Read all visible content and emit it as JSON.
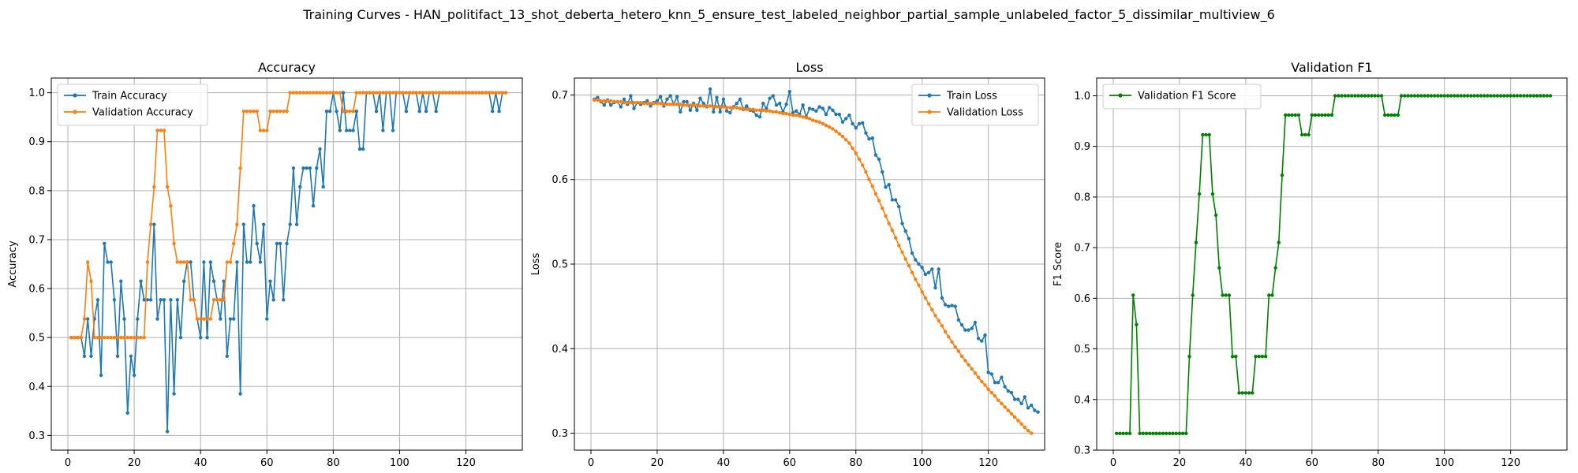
{
  "suptitle": "Training Curves - HAN_politifact_13_shot_deberta_hetero_knn_5_ensure_test_labeled_neighbor_partial_sample_unlabeled_factor_5_dissimilar_multiview_6",
  "colors": {
    "blue": "#1f77b4",
    "orange": "#ff7f0e",
    "green": "#008000",
    "grid": "#b0b0b0"
  },
  "chart_data": [
    {
      "type": "line",
      "title": "Accuracy",
      "xlabel": "Epoch",
      "ylabel": "Accuracy",
      "xlim": [
        -5,
        137
      ],
      "ylim": [
        0.27,
        1.03
      ],
      "xticks": [
        0,
        20,
        40,
        60,
        80,
        100,
        120
      ],
      "yticks": [
        0.3,
        0.4,
        0.5,
        0.6,
        0.7,
        0.8,
        0.9,
        1.0
      ],
      "grid": true,
      "legend": "top-left",
      "series": [
        {
          "name": "Train Accuracy",
          "color": "#1f77b4",
          "x_start": 1,
          "values": [
            0.5,
            0.5,
            0.5,
            0.5,
            0.462,
            0.538,
            0.462,
            0.538,
            0.577,
            0.423,
            0.692,
            0.654,
            0.654,
            0.577,
            0.462,
            0.615,
            0.538,
            0.346,
            0.462,
            0.423,
            0.538,
            0.615,
            0.577,
            0.577,
            0.577,
            0.731,
            0.538,
            0.577,
            0.577,
            0.308,
            0.577,
            0.385,
            0.577,
            0.5,
            0.615,
            0.654,
            0.654,
            0.577,
            0.538,
            0.5,
            0.654,
            0.5,
            0.654,
            0.615,
            0.577,
            0.538,
            0.615,
            0.462,
            0.538,
            0.538,
            0.654,
            0.385,
            0.731,
            0.654,
            0.654,
            0.769,
            0.692,
            0.654,
            0.731,
            0.538,
            0.615,
            0.577,
            0.692,
            0.692,
            0.577,
            0.692,
            0.731,
            0.846,
            0.731,
            0.808,
            0.846,
            0.846,
            0.846,
            0.769,
            0.846,
            0.885,
            0.808,
            0.962,
            0.962,
            1.0,
            0.962,
            0.923,
            1.0,
            0.923,
            0.923,
            0.923,
            0.962,
            0.885,
            0.885,
            1.0,
            1.0,
            1.0,
            0.962,
            1.0,
            0.923,
            1.0,
            1.0,
            0.923,
            1.0,
            1.0,
            1.0,
            0.962,
            1.0,
            1.0,
            1.0,
            0.962,
            1.0,
            0.962,
            1.0,
            1.0,
            0.962,
            1.0,
            1.0,
            1.0,
            1.0,
            1.0,
            1.0,
            1.0,
            1.0,
            1.0,
            1.0,
            1.0,
            1.0,
            1.0,
            1.0,
            1.0,
            1.0,
            0.962,
            1.0,
            0.962,
            1.0,
            1.0
          ]
        },
        {
          "name": "Validation Accuracy",
          "color": "#ff7f0e",
          "x_start": 1,
          "values": [
            0.5,
            0.5,
            0.5,
            0.5,
            0.538,
            0.654,
            0.615,
            0.5,
            0.5,
            0.5,
            0.5,
            0.5,
            0.5,
            0.5,
            0.5,
            0.5,
            0.5,
            0.5,
            0.5,
            0.5,
            0.5,
            0.5,
            0.5,
            0.654,
            0.731,
            0.808,
            0.923,
            0.923,
            0.923,
            0.808,
            0.769,
            0.692,
            0.654,
            0.654,
            0.654,
            0.654,
            0.577,
            0.577,
            0.538,
            0.538,
            0.538,
            0.538,
            0.538,
            0.577,
            0.577,
            0.577,
            0.577,
            0.654,
            0.654,
            0.692,
            0.731,
            0.846,
            0.962,
            0.962,
            0.962,
            0.962,
            0.962,
            0.923,
            0.923,
            0.923,
            0.962,
            0.962,
            0.962,
            0.962,
            0.962,
            0.962,
            1.0,
            1.0,
            1.0,
            1.0,
            1.0,
            1.0,
            1.0,
            1.0,
            1.0,
            1.0,
            1.0,
            1.0,
            1.0,
            1.0,
            1.0,
            1.0,
            0.962,
            0.962,
            0.962,
            0.962,
            1.0,
            1.0,
            1.0,
            1.0,
            1.0,
            1.0,
            1.0,
            1.0,
            1.0,
            1.0,
            1.0,
            1.0,
            1.0,
            1.0,
            1.0,
            1.0,
            1.0,
            1.0,
            1.0,
            1.0,
            1.0,
            1.0,
            1.0,
            1.0,
            1.0,
            1.0,
            1.0,
            1.0,
            1.0,
            1.0,
            1.0,
            1.0,
            1.0,
            1.0,
            1.0,
            1.0,
            1.0,
            1.0,
            1.0,
            1.0,
            1.0,
            1.0,
            1.0,
            1.0,
            1.0,
            1.0
          ]
        }
      ]
    },
    {
      "type": "line",
      "title": "Loss",
      "xlabel": "Epoch",
      "ylabel": "Loss",
      "xlim": [
        -5,
        137
      ],
      "ylim": [
        0.28,
        0.72
      ],
      "xticks": [
        0,
        20,
        40,
        60,
        80,
        100,
        120
      ],
      "yticks": [
        0.3,
        0.4,
        0.5,
        0.6,
        0.7
      ],
      "grid": true,
      "legend": "top-right",
      "series": [
        {
          "name": "Train Loss",
          "color": "#1f77b4",
          "x_start": 1,
          "values": [
            0.695,
            0.697,
            0.692,
            0.688,
            0.694,
            0.688,
            0.691,
            0.692,
            0.686,
            0.695,
            0.689,
            0.699,
            0.684,
            0.691,
            0.689,
            0.691,
            0.693,
            0.687,
            0.691,
            0.693,
            0.698,
            0.687,
            0.695,
            0.699,
            0.689,
            0.698,
            0.68,
            0.692,
            0.692,
            0.682,
            0.69,
            0.682,
            0.696,
            0.69,
            0.686,
            0.707,
            0.68,
            0.697,
            0.68,
            0.695,
            0.681,
            0.679,
            0.686,
            0.69,
            0.695,
            0.683,
            0.687,
            0.682,
            0.681,
            0.676,
            0.674,
            0.69,
            0.684,
            0.696,
            0.699,
            0.688,
            0.69,
            0.68,
            0.689,
            0.704,
            0.679,
            0.681,
            0.677,
            0.688,
            0.674,
            0.684,
            0.683,
            0.681,
            0.686,
            0.684,
            0.677,
            0.685,
            0.682,
            0.677,
            0.677,
            0.668,
            0.672,
            0.676,
            0.666,
            0.661,
            0.666,
            0.667,
            0.655,
            0.648,
            0.649,
            0.629,
            0.624,
            0.609,
            0.591,
            0.594,
            0.576,
            0.576,
            0.568,
            0.548,
            0.539,
            0.53,
            0.513,
            0.505,
            0.5,
            0.496,
            0.488,
            0.49,
            0.494,
            0.472,
            0.494,
            0.46,
            0.452,
            0.45,
            0.451,
            0.45,
            0.434,
            0.428,
            0.422,
            0.422,
            0.424,
            0.431,
            0.412,
            0.409,
            0.416,
            0.372,
            0.37,
            0.36,
            0.36,
            0.366,
            0.355,
            0.35,
            0.348,
            0.34,
            0.34,
            0.335,
            0.343,
            0.33,
            0.333,
            0.327,
            0.325
          ]
        },
        {
          "name": "Validation Loss",
          "color": "#ff7f0e",
          "x_start": 1,
          "values": [
            0.694,
            0.694,
            0.693,
            0.693,
            0.693,
            0.693,
            0.692,
            0.692,
            0.692,
            0.691,
            0.691,
            0.691,
            0.691,
            0.691,
            0.691,
            0.69,
            0.69,
            0.69,
            0.69,
            0.69,
            0.69,
            0.689,
            0.689,
            0.689,
            0.689,
            0.689,
            0.689,
            0.688,
            0.688,
            0.688,
            0.688,
            0.688,
            0.687,
            0.687,
            0.687,
            0.687,
            0.686,
            0.686,
            0.686,
            0.686,
            0.685,
            0.685,
            0.685,
            0.685,
            0.684,
            0.684,
            0.683,
            0.683,
            0.683,
            0.682,
            0.682,
            0.682,
            0.681,
            0.681,
            0.68,
            0.68,
            0.679,
            0.678,
            0.678,
            0.677,
            0.676,
            0.676,
            0.675,
            0.674,
            0.673,
            0.672,
            0.67,
            0.669,
            0.668,
            0.666,
            0.664,
            0.662,
            0.66,
            0.657,
            0.654,
            0.651,
            0.647,
            0.643,
            0.637,
            0.631,
            0.624,
            0.617,
            0.609,
            0.6,
            0.592,
            0.583,
            0.575,
            0.566,
            0.557,
            0.548,
            0.54,
            0.531,
            0.522,
            0.514,
            0.506,
            0.498,
            0.49,
            0.482,
            0.475,
            0.467,
            0.46,
            0.453,
            0.446,
            0.439,
            0.433,
            0.427,
            0.42,
            0.414,
            0.408,
            0.402,
            0.397,
            0.391,
            0.386,
            0.381,
            0.376,
            0.371,
            0.366,
            0.361,
            0.357,
            0.352,
            0.348,
            0.344,
            0.339,
            0.335,
            0.331,
            0.327,
            0.323,
            0.319,
            0.315,
            0.311,
            0.307,
            0.303,
            0.3
          ]
        }
      ]
    },
    {
      "type": "line",
      "title": "Validation F1",
      "xlabel": "Epoch",
      "ylabel": "F1 Score",
      "xlim": [
        -5,
        137
      ],
      "ylim": [
        0.3,
        1.035
      ],
      "xticks": [
        0,
        20,
        40,
        60,
        80,
        100,
        120
      ],
      "yticks": [
        0.3,
        0.4,
        0.5,
        0.6,
        0.7,
        0.8,
        0.9,
        1.0
      ],
      "grid": true,
      "legend": "top-left",
      "series": [
        {
          "name": "Validation F1 Score",
          "color": "#008000",
          "x_start": 1,
          "values": [
            0.333,
            0.333,
            0.333,
            0.333,
            0.333,
            0.606,
            0.548,
            0.333,
            0.333,
            0.333,
            0.333,
            0.333,
            0.333,
            0.333,
            0.333,
            0.333,
            0.333,
            0.333,
            0.333,
            0.333,
            0.333,
            0.333,
            0.485,
            0.606,
            0.71,
            0.806,
            0.923,
            0.923,
            0.923,
            0.806,
            0.764,
            0.66,
            0.606,
            0.606,
            0.606,
            0.485,
            0.485,
            0.413,
            0.413,
            0.413,
            0.413,
            0.413,
            0.485,
            0.485,
            0.485,
            0.485,
            0.606,
            0.606,
            0.66,
            0.71,
            0.843,
            0.962,
            0.962,
            0.962,
            0.962,
            0.962,
            0.923,
            0.923,
            0.923,
            0.962,
            0.962,
            0.962,
            0.962,
            0.962,
            0.962,
            0.962,
            1.0,
            1.0,
            1.0,
            1.0,
            1.0,
            1.0,
            1.0,
            1.0,
            1.0,
            1.0,
            1.0,
            1.0,
            1.0,
            1.0,
            1.0,
            0.962,
            0.962,
            0.962,
            0.962,
            0.962,
            1.0,
            1.0,
            1.0,
            1.0,
            1.0,
            1.0,
            1.0,
            1.0,
            1.0,
            1.0,
            1.0,
            1.0,
            1.0,
            1.0,
            1.0,
            1.0,
            1.0,
            1.0,
            1.0,
            1.0,
            1.0,
            1.0,
            1.0,
            1.0,
            1.0,
            1.0,
            1.0,
            1.0,
            1.0,
            1.0,
            1.0,
            1.0,
            1.0,
            1.0,
            1.0,
            1.0,
            1.0,
            1.0,
            1.0,
            1.0,
            1.0,
            1.0,
            1.0,
            1.0,
            1.0,
            1.0
          ]
        }
      ]
    }
  ]
}
